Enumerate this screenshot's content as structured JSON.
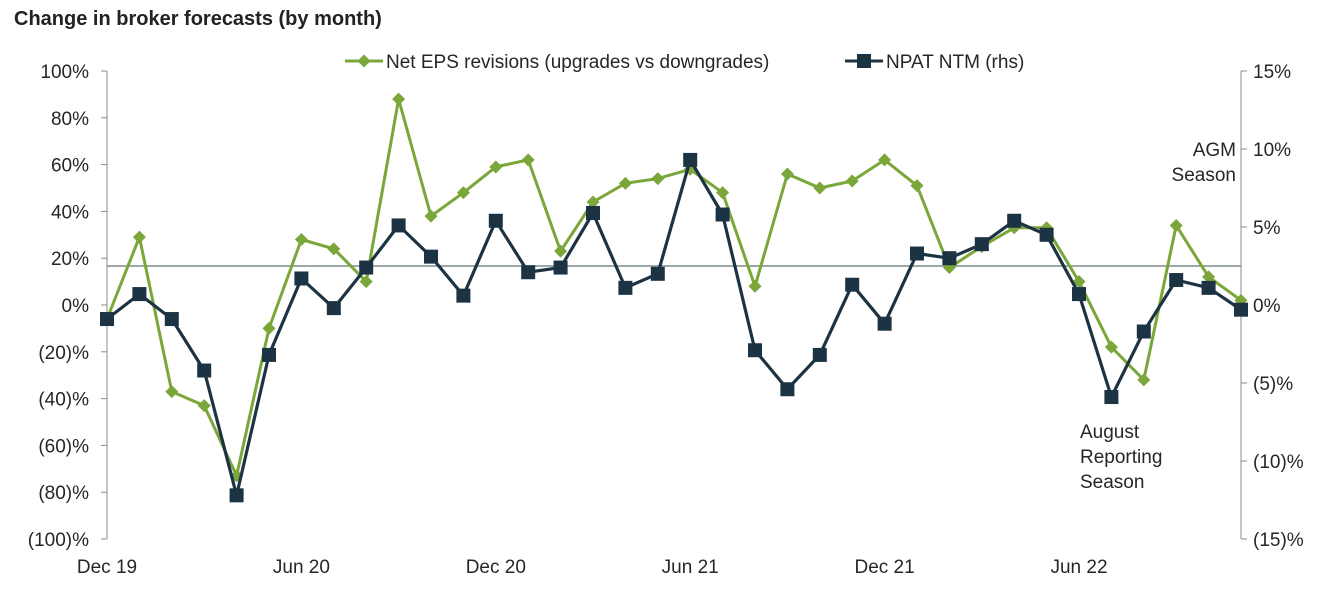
{
  "chart_data": {
    "type": "line",
    "title": "Change in broker forecasts (by month)",
    "categories": [
      "Dec 19",
      "Jan 20",
      "Feb 20",
      "Mar 20",
      "Apr 20",
      "May 20",
      "Jun 20",
      "Jul 20",
      "Aug 20",
      "Sep 20",
      "Oct 20",
      "Nov 20",
      "Dec 20",
      "Jan 21",
      "Feb 21",
      "Mar 21",
      "Apr 21",
      "May 21",
      "Jun 21",
      "Jul 21",
      "Aug 21",
      "Sep 21",
      "Oct 21",
      "Nov 21",
      "Dec 21",
      "Jan 22",
      "Feb 22",
      "Mar 22",
      "Apr 22",
      "May 22",
      "Jun 22",
      "Jul 22",
      "Aug 22",
      "Sep 22",
      "Oct 22",
      "Nov 22"
    ],
    "x_tick_labels": [
      {
        "index": 0,
        "label": "Dec 19"
      },
      {
        "index": 6,
        "label": "Jun 20"
      },
      {
        "index": 12,
        "label": "Dec 20"
      },
      {
        "index": 18,
        "label": "Jun 21"
      },
      {
        "index": 24,
        "label": "Dec 21"
      },
      {
        "index": 30,
        "label": "Jun 22"
      }
    ],
    "series": [
      {
        "name": "Net EPS revisions (upgrades vs downgrades)",
        "axis": "left",
        "color": "#7aa63a",
        "marker": "diamond",
        "values": [
          -6,
          29,
          -37,
          -43,
          -73,
          -10,
          28,
          24,
          10,
          88,
          38,
          48,
          59,
          62,
          23,
          44,
          52,
          54,
          58,
          48,
          8,
          56,
          50,
          53,
          62,
          51,
          16,
          25,
          33,
          33,
          10,
          -18,
          -32,
          34,
          12,
          2
        ]
      },
      {
        "name": "NPAT NTM (rhs)",
        "axis": "right",
        "color": "#1c3344",
        "marker": "square",
        "values": [
          -0.9,
          0.7,
          -0.9,
          -4.2,
          -12.2,
          -3.2,
          1.7,
          -0.2,
          2.4,
          5.1,
          3.1,
          0.6,
          5.4,
          2.1,
          2.4,
          5.9,
          1.1,
          2.0,
          9.3,
          5.8,
          -2.9,
          -5.4,
          -3.2,
          1.3,
          -1.2,
          3.3,
          3.0,
          3.9,
          5.4,
          4.5,
          0.7,
          -5.9,
          -1.7,
          1.6,
          1.1,
          -0.3
        ]
      }
    ],
    "y_left": {
      "min": -100,
      "max": 100,
      "step": 20,
      "tick_labels": [
        "(100)%",
        "(80)%",
        "(60)%",
        "(40)%",
        "(20)%",
        "0%",
        "20%",
        "40%",
        "60%",
        "80%",
        "100%"
      ]
    },
    "y_right": {
      "min": -15,
      "max": 15,
      "step": 5,
      "tick_labels": [
        "(15)%",
        "(10)%",
        "(5)%",
        "0%",
        "5%",
        "10%",
        "15%"
      ]
    },
    "reference_line_right_value": 2.5,
    "annotations": [
      {
        "lines": [
          "AGM",
          "Season"
        ]
      },
      {
        "lines": [
          "August",
          "Reporting",
          "Season"
        ]
      }
    ],
    "legend_position": "top",
    "grid": false
  }
}
